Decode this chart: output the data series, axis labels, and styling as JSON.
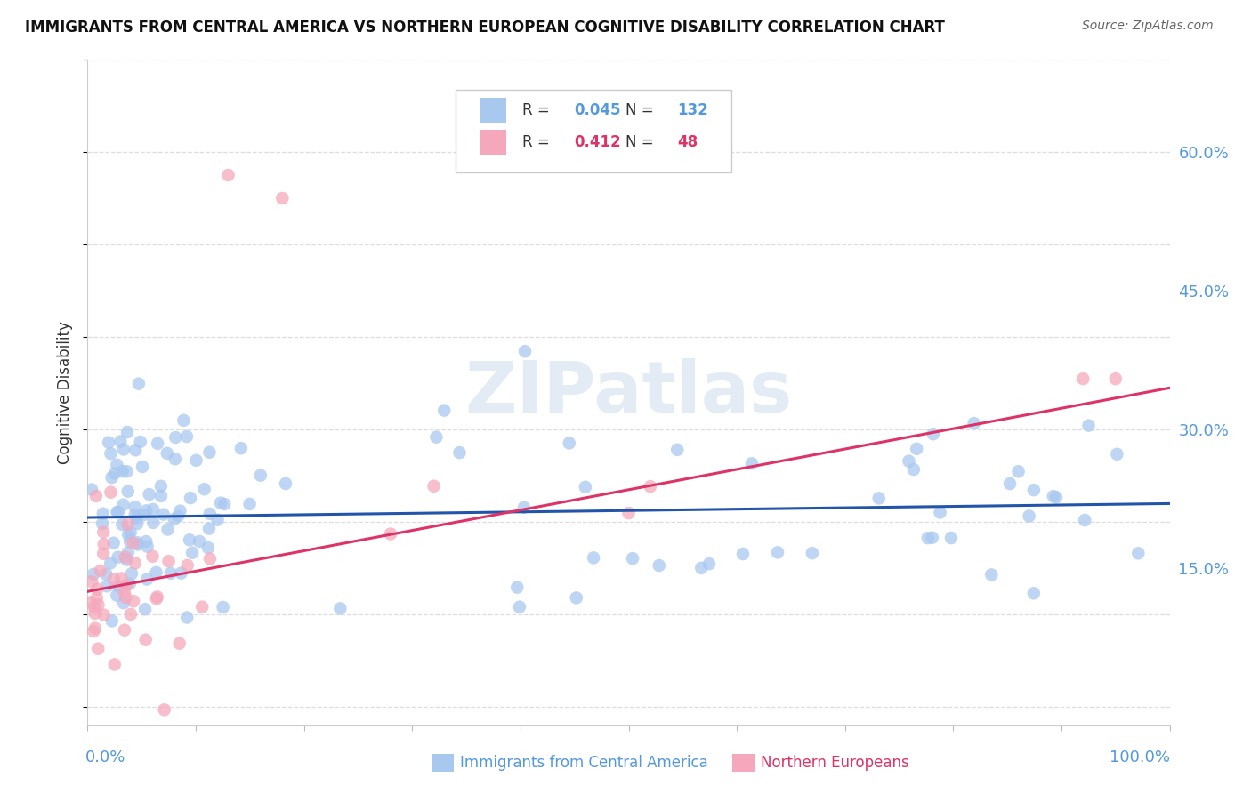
{
  "title": "IMMIGRANTS FROM CENTRAL AMERICA VS NORTHERN EUROPEAN COGNITIVE DISABILITY CORRELATION CHART",
  "source": "Source: ZipAtlas.com",
  "ylabel": "Cognitive Disability",
  "right_yticks": [
    "60.0%",
    "45.0%",
    "30.0%",
    "15.0%"
  ],
  "right_ytick_vals": [
    0.6,
    0.45,
    0.3,
    0.15
  ],
  "legend_blue_r": "0.045",
  "legend_blue_n": "132",
  "legend_pink_r": "0.412",
  "legend_pink_n": "48",
  "blue_color": "#a8c8f0",
  "pink_color": "#f5a8bc",
  "blue_line_color": "#2255aa",
  "pink_line_color": "#dd3366",
  "watermark": "ZIPatlas",
  "background_color": "#ffffff",
  "grid_color": "#dddddd",
  "blue_line_intercept": 0.205,
  "blue_line_slope": 0.015,
  "pink_line_intercept": 0.125,
  "pink_line_slope": 0.22
}
